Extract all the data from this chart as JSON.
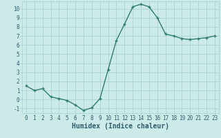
{
  "x": [
    0,
    1,
    2,
    3,
    4,
    5,
    6,
    7,
    8,
    9,
    10,
    11,
    12,
    13,
    14,
    15,
    16,
    17,
    18,
    19,
    20,
    21,
    22,
    23
  ],
  "y": [
    1.5,
    1.0,
    1.2,
    0.3,
    0.1,
    -0.1,
    -0.6,
    -1.2,
    -0.9,
    0.1,
    3.3,
    6.5,
    8.3,
    10.2,
    10.5,
    10.2,
    9.0,
    7.2,
    7.0,
    6.7,
    6.6,
    6.7,
    6.8,
    7.0
  ],
  "line_color": "#2e7d6e",
  "bg_color": "#cceae8",
  "grid_color": "#aad4d0",
  "xlabel": "Humidex (Indice chaleur)",
  "ylim": [
    -1.5,
    10.8
  ],
  "xlim": [
    -0.5,
    23.5
  ],
  "yticks": [
    -1,
    0,
    1,
    2,
    3,
    4,
    5,
    6,
    7,
    8,
    9,
    10
  ],
  "xticks": [
    0,
    1,
    2,
    3,
    4,
    5,
    6,
    7,
    8,
    9,
    10,
    11,
    12,
    13,
    14,
    15,
    16,
    17,
    18,
    19,
    20,
    21,
    22,
    23
  ],
  "font_color": "#2e5c6e",
  "tick_fontsize": 5.5,
  "label_fontsize": 7.0
}
